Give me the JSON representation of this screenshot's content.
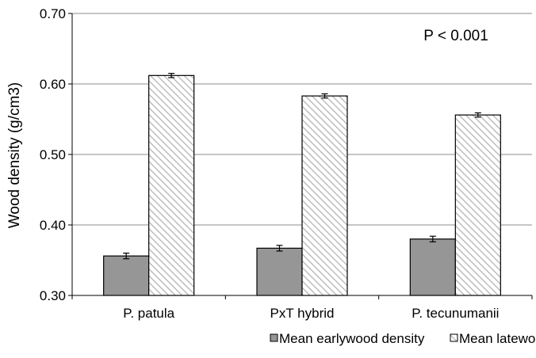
{
  "chart_data": {
    "type": "bar",
    "categories": [
      "P. patula",
      "PxT hybrid",
      "P. tecunumanii"
    ],
    "series": [
      {
        "name": "Mean earlywood density",
        "values": [
          0.356,
          0.367,
          0.38
        ],
        "errors": [
          0.004,
          0.004,
          0.004
        ],
        "color": "#969696",
        "pattern": "solid"
      },
      {
        "name": "Mean latewood density",
        "values": [
          0.612,
          0.583,
          0.556
        ],
        "errors": [
          0.003,
          0.003,
          0.003
        ],
        "color": "#ffffff",
        "pattern": "diagonal-hatch"
      }
    ],
    "ylabel": "Wood density (g/cm3)",
    "xlabel": "",
    "ylim": [
      0.3,
      0.7
    ],
    "yticks": [
      "0.30",
      "0.40",
      "0.50",
      "0.60",
      "0.70"
    ],
    "grid": true,
    "legend_position": "bottom",
    "annotation": "P < 0.001"
  }
}
